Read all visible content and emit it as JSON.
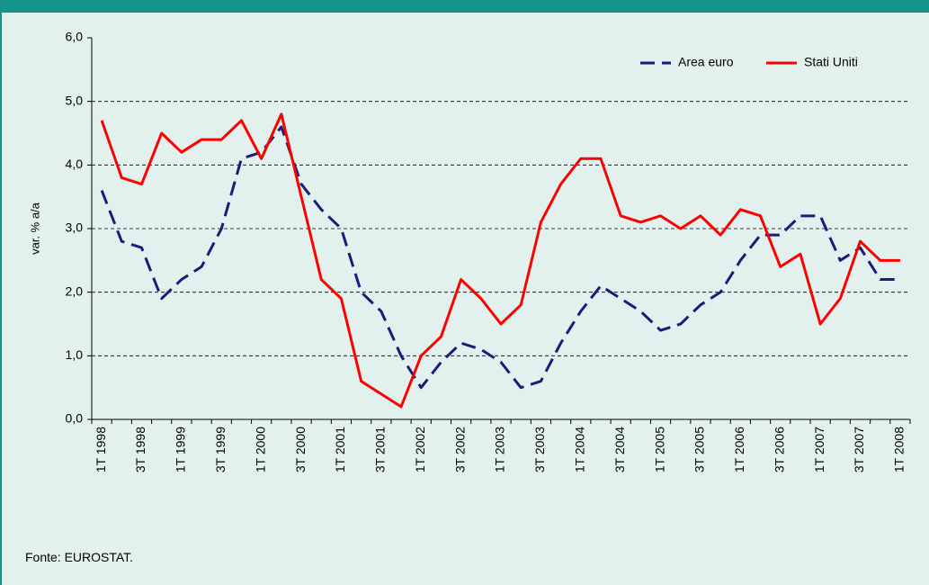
{
  "chart_data": {
    "type": "line",
    "y_label": "var. % a/a",
    "source": "Fonte: EUROSTAT.",
    "categories": [
      "1T 1998",
      null,
      "3T 1998",
      null,
      "1T 1999",
      null,
      "3T 1999",
      null,
      "1T 2000",
      null,
      "3T 2000",
      null,
      "1T 2001",
      null,
      "3T 2001",
      null,
      "1T 2002",
      null,
      "3T 2002",
      null,
      "1T 2003",
      null,
      "3T 2003",
      null,
      "1T 2004",
      null,
      "3T 2004",
      null,
      "1T 2005",
      null,
      "3T 2005",
      null,
      "1T 2006",
      null,
      "3T 2006",
      null,
      "1T 2007",
      null,
      "3T 2007",
      null,
      "1T 2008"
    ],
    "series": [
      {
        "name": "Area euro",
        "color": "#1c1c78",
        "dashed": true,
        "values": [
          3.6,
          2.8,
          2.7,
          1.9,
          2.2,
          2.4,
          3.0,
          4.1,
          4.2,
          4.6,
          3.7,
          3.3,
          3.0,
          2.0,
          1.7,
          1.0,
          0.5,
          0.9,
          1.2,
          1.1,
          0.9,
          0.5,
          0.6,
          1.2,
          1.7,
          2.1,
          1.9,
          1.7,
          1.4,
          1.5,
          1.8,
          2.0,
          2.5,
          2.9,
          2.9,
          3.2,
          3.2,
          2.5,
          2.7,
          2.2,
          2.2
        ]
      },
      {
        "name": "Stati Uniti",
        "color": "#ff0000",
        "dashed": false,
        "values": [
          4.7,
          3.8,
          3.7,
          4.5,
          4.2,
          4.4,
          4.4,
          4.7,
          4.1,
          4.8,
          3.5,
          2.2,
          1.9,
          0.6,
          0.4,
          0.2,
          1.0,
          1.3,
          2.2,
          1.9,
          1.5,
          1.8,
          3.1,
          3.7,
          4.1,
          4.1,
          3.2,
          3.1,
          3.2,
          3.0,
          3.2,
          2.9,
          3.3,
          3.2,
          2.4,
          2.6,
          1.5,
          1.9,
          2.8,
          2.5,
          2.5
        ]
      }
    ],
    "ylim": [
      0,
      6
    ],
    "yticks": [
      {
        "value": 0,
        "label": "0,0"
      },
      {
        "value": 1,
        "label": "1,0"
      },
      {
        "value": 2,
        "label": "2,0"
      },
      {
        "value": 3,
        "label": "3,0"
      },
      {
        "value": 4,
        "label": "4,0"
      },
      {
        "value": 5,
        "label": "5,0"
      },
      {
        "value": 6,
        "label": "6,0"
      }
    ],
    "grid": true,
    "legend": "upper right"
  }
}
